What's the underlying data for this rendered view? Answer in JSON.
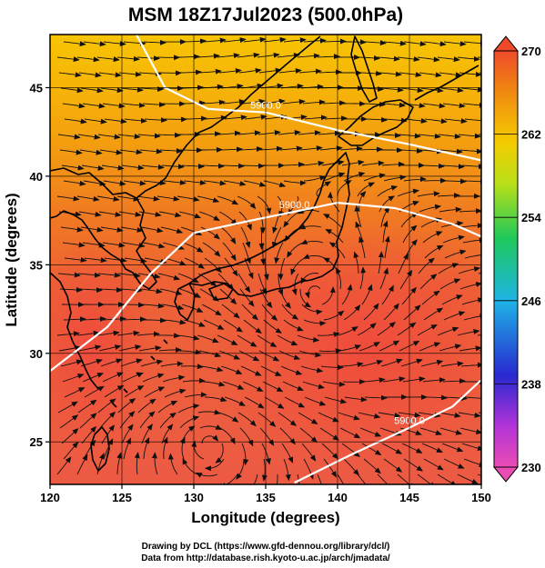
{
  "title": "MSM 18Z17Jul2023 (500.0hPa)",
  "map": {
    "xlabel": "Longitude (degrees)",
    "ylabel": "Latitude  (degrees)",
    "xlim": [
      120,
      150
    ],
    "ylim": [
      22.6,
      48
    ],
    "xticks": [
      "120",
      "125",
      "130",
      "135",
      "140",
      "145",
      "150"
    ],
    "yticks": [
      "25",
      "30",
      "35",
      "40",
      "45"
    ],
    "grid": "on",
    "colors": {
      "warm_north": "#f6c400",
      "mid": "#f08a10",
      "hot": "#ec5a3c",
      "stream": "#111111",
      "contour": "#ffffff",
      "coast": "#000000"
    }
  },
  "colorbar": {
    "ticks": [
      "270",
      "262",
      "254",
      "246",
      "238",
      "230"
    ],
    "range": [
      230,
      270
    ],
    "colors": [
      "#ef4a7a",
      "#d43bd2",
      "#2a2ad6",
      "#1fb0e0",
      "#20c860",
      "#c8e020",
      "#f6c800",
      "#f08a10",
      "#ec4a2a"
    ]
  },
  "contours": [
    {
      "label": "5900.0",
      "lonlat": [
        [
          126,
          48
        ],
        [
          128,
          45
        ],
        [
          131,
          43.8
        ],
        [
          135,
          43.6
        ],
        [
          140,
          42.6
        ],
        [
          145,
          41.8
        ],
        [
          150,
          40.9
        ]
      ]
    },
    {
      "label": "5900.0",
      "lonlat": [
        [
          120,
          29
        ],
        [
          124,
          31.5
        ],
        [
          127,
          34.5
        ],
        [
          130,
          36.8
        ],
        [
          134,
          37.5
        ],
        [
          137,
          38
        ],
        [
          140,
          38.5
        ],
        [
          144,
          38.2
        ],
        [
          148,
          37.3
        ],
        [
          150,
          36.6
        ]
      ]
    },
    {
      "label": "5900.0",
      "lonlat": [
        [
          137,
          22.7
        ],
        [
          141,
          24.3
        ],
        [
          145,
          25.8
        ],
        [
          148,
          27
        ],
        [
          150,
          28.5
        ]
      ]
    }
  ],
  "credits": {
    "line1": "Drawing by DCL (https://www.gfd-dennou.org/library/dcl/)",
    "line2": "Data from http://database.rish.kyoto-u.ac.jp/arch/jmadata/"
  }
}
